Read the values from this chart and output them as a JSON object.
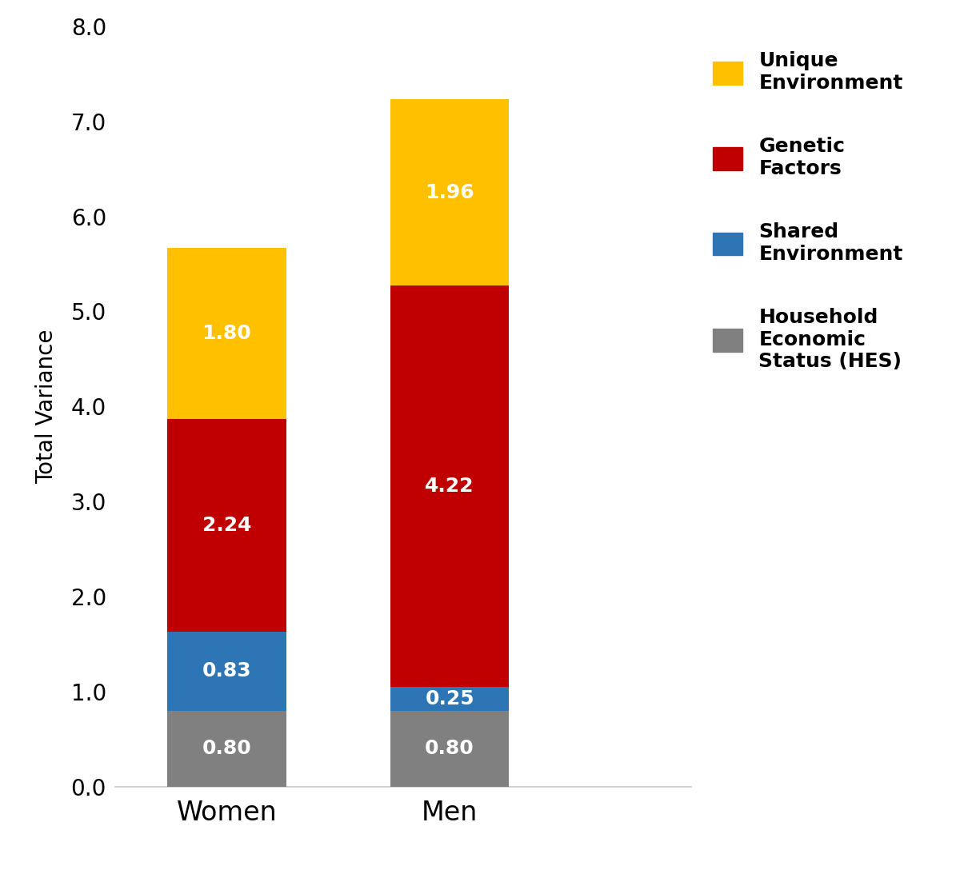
{
  "categories": [
    "Women",
    "Men"
  ],
  "segments": {
    "Household Economic Status (HES)": {
      "values": [
        0.8,
        0.8
      ],
      "color": "#808080",
      "label": "Household\nEconomic\nStatus (HES)"
    },
    "Shared Environment": {
      "values": [
        0.83,
        0.25
      ],
      "color": "#2E75B6",
      "label": "Shared\nEnvironment"
    },
    "Genetic Factors": {
      "values": [
        2.24,
        4.22
      ],
      "color": "#C00000",
      "label": "Genetic\nFactors"
    },
    "Unique Environment": {
      "values": [
        1.8,
        1.96
      ],
      "color": "#FFC000",
      "label": "Unique\nEnvironment"
    }
  },
  "ylabel": "Total Variance",
  "ylim": [
    0,
    8.0
  ],
  "yticks": [
    0.0,
    1.0,
    2.0,
    3.0,
    4.0,
    5.0,
    6.0,
    7.0,
    8.0
  ],
  "bar_width": 0.32,
  "bar_positions": [
    0.3,
    0.9
  ],
  "label_fontsize": 20,
  "tick_fontsize": 20,
  "value_fontsize": 18,
  "legend_fontsize": 18,
  "background_color": "#ffffff"
}
